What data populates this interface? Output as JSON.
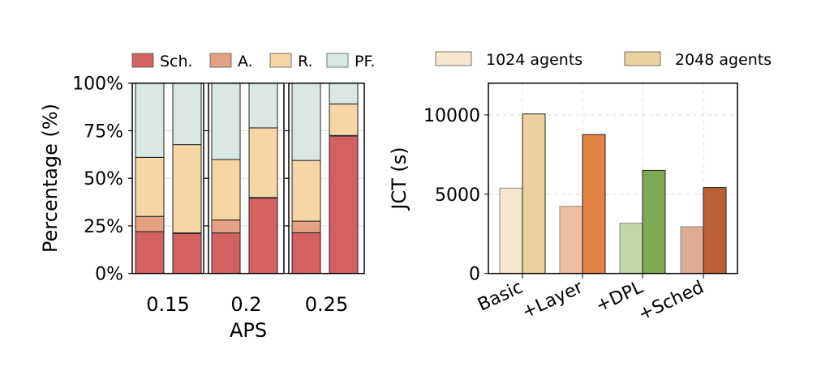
{
  "chart_data": [
    {
      "type": "bar",
      "stacked": true,
      "ylabel": "Percentage (%)",
      "xlabel": "APS",
      "ylim": [
        0,
        100
      ],
      "yticks": [
        "0%",
        "25%",
        "50%",
        "75%",
        "100%"
      ],
      "groups": [
        "0.15",
        "0.2",
        "0.25"
      ],
      "legend": [
        "Sch.",
        "A.",
        "R.",
        "PF."
      ],
      "legend_position": "top",
      "colors": [
        "#d36161",
        "#e5a283",
        "#f5d6a4",
        "#d9e8e3"
      ],
      "bars": [
        [
          [
            22,
            8,
            31,
            39
          ],
          [
            21,
            0.3,
            46.4,
            32.3
          ]
        ],
        [
          [
            21.3,
            6.8,
            31.8,
            40.1
          ],
          [
            39.6,
            0.3,
            36.6,
            23.5
          ]
        ],
        [
          [
            21.4,
            6.1,
            31.9,
            40.6
          ],
          [
            72.2,
            0.3,
            16.6,
            10.9
          ]
        ]
      ]
    },
    {
      "type": "bar",
      "ylabel": "JCT (s)",
      "ylim": [
        0,
        12000
      ],
      "yticks": [
        "0",
        "5000",
        "10000"
      ],
      "categories": [
        "Basic",
        "+Layer",
        "+DPL",
        "+Sched"
      ],
      "legend_position": "top",
      "grid": true,
      "series": [
        {
          "name": "1024 agents",
          "values": [
            5380,
            4230,
            3170,
            2950
          ],
          "colors": [
            "#f5e7cd",
            "#eebf9e",
            "#c1d7a8",
            "#deac96"
          ]
        },
        {
          "name": "2048 agents",
          "values": [
            10060,
            8760,
            6500,
            5420
          ],
          "colors": [
            "#ebd19e",
            "#e08345",
            "#80ab56",
            "#bd5f34"
          ]
        }
      ]
    }
  ]
}
